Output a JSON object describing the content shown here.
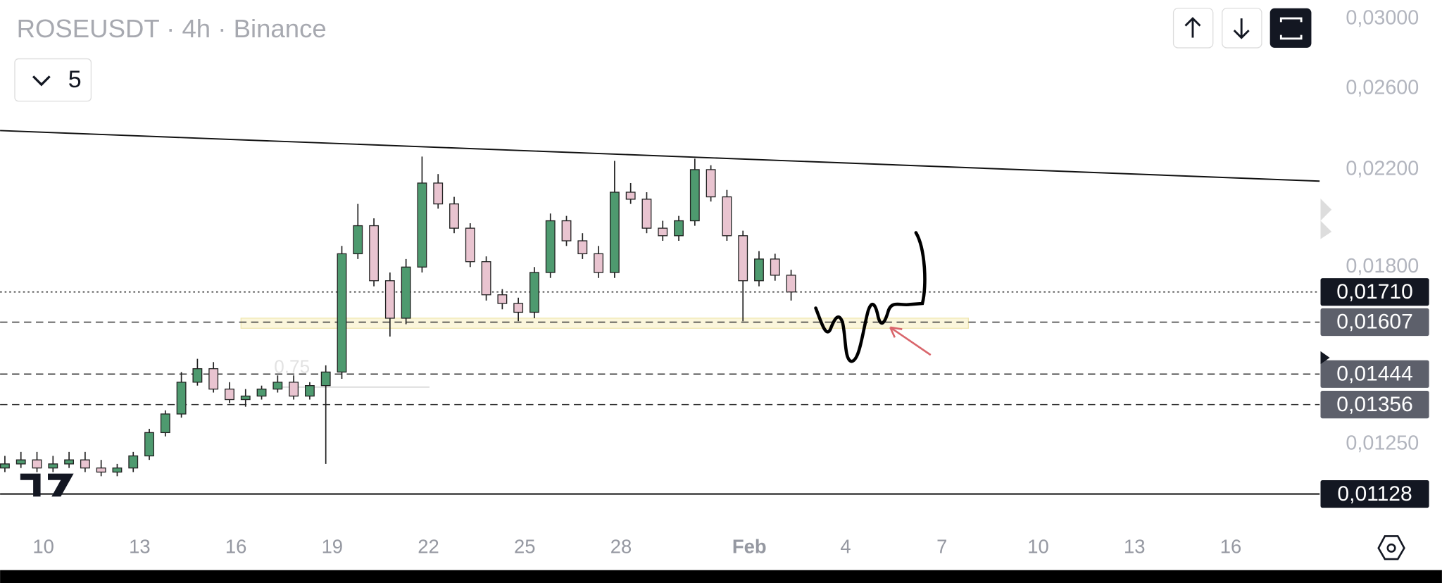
{
  "header": {
    "title": "ROSEUSDT · 4h · Binance",
    "indicator_count": "5"
  },
  "chart_data": {
    "type": "candlestick",
    "log_scale": true,
    "xlim": [
      8.65,
      49.77
    ],
    "xticks": [
      10,
      13,
      16,
      19,
      22,
      25,
      28,
      {
        "value": 32,
        "label": "Feb"
      },
      {
        "value": 35,
        "label": "4"
      },
      {
        "value": 38,
        "label": "7"
      },
      {
        "value": 41,
        "label": "10"
      },
      {
        "value": 44,
        "label": "13"
      },
      {
        "value": 47,
        "label": "16"
      }
    ],
    "ylim": [
      0.0106,
      0.0312
    ],
    "yticks": [
      {
        "value": 0.03,
        "label": "0,03000"
      },
      {
        "value": 0.026,
        "label": "0,02600"
      },
      {
        "value": 0.022,
        "label": "0,02200"
      },
      {
        "value": 0.018,
        "label": "0,01800"
      },
      {
        "value": 0.0125,
        "label": "0,01250"
      }
    ],
    "up_color": "#4e9a6f",
    "down_color": "#e9c4d0",
    "x": [
      8.8,
      9.3,
      9.8,
      10.3,
      10.8,
      11.3,
      11.8,
      12.3,
      12.8,
      13.3,
      13.8,
      14.3,
      14.8,
      15.3,
      15.8,
      16.3,
      16.8,
      17.3,
      17.8,
      18.3,
      18.8,
      19.3,
      19.8,
      20.3,
      20.8,
      21.3,
      21.8,
      22.3,
      22.8,
      23.3,
      23.8,
      24.3,
      24.8,
      25.3,
      25.8,
      26.3,
      26.8,
      27.3,
      27.8,
      28.3,
      28.8,
      29.3,
      29.8,
      30.3,
      30.8,
      31.3,
      31.8,
      32.3,
      32.8,
      33.3
    ],
    "open": [
      0.0119,
      0.012,
      0.0121,
      0.0119,
      0.012,
      0.0121,
      0.0119,
      0.0118,
      0.0119,
      0.0122,
      0.0128,
      0.0133,
      0.0142,
      0.0146,
      0.014,
      0.0137,
      0.0138,
      0.014,
      0.0142,
      0.0138,
      0.0141,
      0.0145,
      0.0185,
      0.0196,
      0.0175,
      0.0162,
      0.018,
      0.0214,
      0.0205,
      0.0195,
      0.0182,
      0.017,
      0.0167,
      0.0164,
      0.0178,
      0.0198,
      0.019,
      0.0185,
      0.0178,
      0.021,
      0.0207,
      0.0195,
      0.0192,
      0.0198,
      0.022,
      0.0208,
      0.0192,
      0.0175,
      0.0183,
      0.0177
    ],
    "high": [
      0.0122,
      0.0123,
      0.0123,
      0.0122,
      0.0123,
      0.0123,
      0.0121,
      0.012,
      0.0123,
      0.0129,
      0.0134,
      0.0145,
      0.0149,
      0.0148,
      0.0142,
      0.014,
      0.0141,
      0.0144,
      0.0144,
      0.0142,
      0.0147,
      0.0188,
      0.0205,
      0.0199,
      0.0178,
      0.0183,
      0.0226,
      0.0218,
      0.0208,
      0.0197,
      0.0184,
      0.0172,
      0.0169,
      0.018,
      0.0201,
      0.02,
      0.0193,
      0.0188,
      0.0224,
      0.0214,
      0.021,
      0.0198,
      0.02,
      0.0225,
      0.0222,
      0.0211,
      0.0194,
      0.0186,
      0.0185,
      0.0179
    ],
    "low": [
      0.0118,
      0.0119,
      0.0118,
      0.0118,
      0.0119,
      0.0118,
      0.0117,
      0.0117,
      0.0118,
      0.0121,
      0.0127,
      0.0132,
      0.0141,
      0.0139,
      0.0136,
      0.0135,
      0.0137,
      0.0139,
      0.0137,
      0.0137,
      0.012,
      0.0143,
      0.0183,
      0.0173,
      0.0156,
      0.016,
      0.0178,
      0.0203,
      0.0193,
      0.018,
      0.0168,
      0.0165,
      0.0161,
      0.0162,
      0.0176,
      0.0188,
      0.0183,
      0.0176,
      0.0176,
      0.0205,
      0.0193,
      0.019,
      0.019,
      0.0196,
      0.0206,
      0.019,
      0.0161,
      0.0173,
      0.0175,
      0.0168
    ],
    "close": [
      0.012,
      0.0121,
      0.0119,
      0.012,
      0.0121,
      0.0119,
      0.0118,
      0.0119,
      0.0122,
      0.0128,
      0.0133,
      0.0142,
      0.0146,
      0.014,
      0.0137,
      0.0138,
      0.014,
      0.0142,
      0.0138,
      0.0141,
      0.0145,
      0.0185,
      0.0196,
      0.0175,
      0.0162,
      0.018,
      0.0214,
      0.0205,
      0.0195,
      0.0182,
      0.017,
      0.0167,
      0.0164,
      0.0178,
      0.0198,
      0.019,
      0.0185,
      0.0178,
      0.021,
      0.0207,
      0.0195,
      0.0192,
      0.0198,
      0.022,
      0.0208,
      0.0192,
      0.0175,
      0.0183,
      0.0177,
      0.0171
    ],
    "levels": [
      {
        "value": 0.0171,
        "label": "0,01710",
        "style": "dotted",
        "box_color": "#131722"
      },
      {
        "value": 0.01607,
        "label": "0,01607",
        "style": "dashed",
        "box_color": "#5d606b"
      },
      {
        "value": 0.01444,
        "label": "0,01444",
        "style": "dashed",
        "box_color": "#5d606b"
      },
      {
        "value": 0.01356,
        "label": "0,01356",
        "style": "dashed",
        "box_color": "#5d606b"
      },
      {
        "value": 0.01128,
        "label": "0,01128",
        "style": "solid",
        "box_color": "#131722"
      }
    ],
    "annotation": "0.75"
  }
}
